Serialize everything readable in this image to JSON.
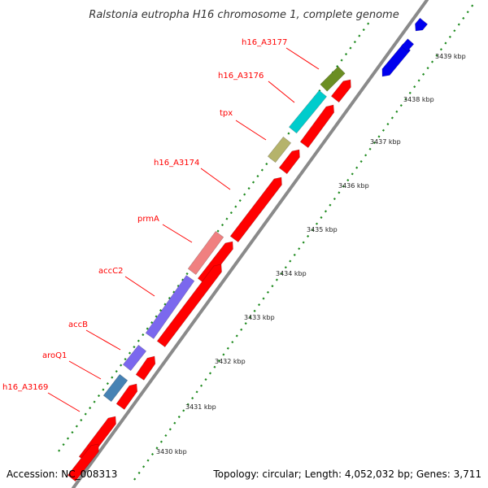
{
  "title": "Ralstonia eutropha H16 chromosome 1, complete genome",
  "accession": "Accession: NC_008313",
  "topology": "Topology: circular; Length: 4,052,032 bp; Genes: 3,711",
  "colors": {
    "backbone": "#8a8a8a",
    "gc_dots": "#1e8a1e",
    "label": "#ff0000",
    "leader": "#ff0000",
    "forward_cds": "#ff0000",
    "reverse_cds": "#0000ee"
  },
  "tick_labels": [
    "3430 kbp",
    "3431 kbp",
    "3432 kbp",
    "3433 kbp",
    "3434 kbp",
    "3435 kbp",
    "3436 kbp",
    "3437 kbp",
    "3438 kbp",
    "3439 kbp"
  ],
  "gene_labels": [
    "h16_A3177",
    "h16_A3176",
    "tpx",
    "h16_A3174",
    "prmA",
    "accC2",
    "accB",
    "aroQ1",
    "h16_A3169"
  ],
  "feature_colors": [
    "#6b8e23",
    "#00cccc",
    "#b5b36b",
    "#f08080",
    "#7b68ee",
    "#7b68ee",
    "#4682b4"
  ]
}
